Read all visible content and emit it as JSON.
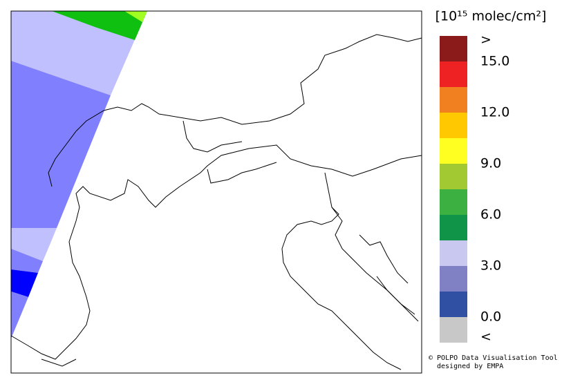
{
  "colorbar": {
    "title": "[10¹⁵ molec/cm²]",
    "colors": [
      "#8b1a1a",
      "#ee2222",
      "#f08020",
      "#ffc800",
      "#ffff22",
      "#a2c832",
      "#3cb040",
      "#109448",
      "#c8c8f0",
      "#8080c4",
      "#3050a4",
      "#c8c8c8"
    ],
    "labels": [
      ">",
      "15.0",
      "12.0",
      "9.0",
      "6.0",
      "3.0",
      "0.0",
      "<"
    ]
  },
  "credits": [
    "© POLPO Data Visualisation Tool",
    "designed by EMPA"
  ]
}
